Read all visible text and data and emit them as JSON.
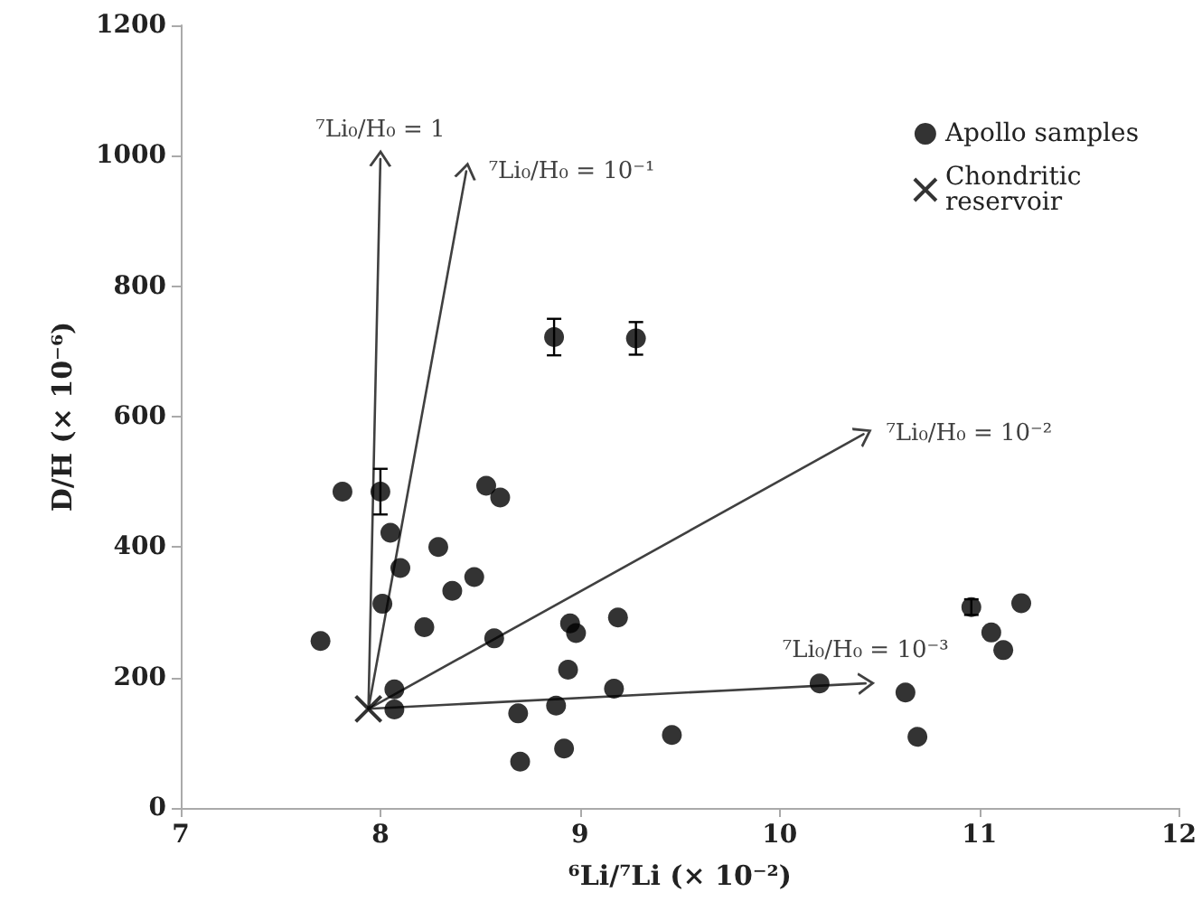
{
  "chart_data": {
    "type": "scatter",
    "xlabel": "⁶Li/⁷Li (× 10⁻²)",
    "ylabel": "D/H (× 10⁻⁶)",
    "xlim": [
      7,
      12
    ],
    "xticks": [
      7,
      8,
      9,
      10,
      11,
      12
    ],
    "ylim": [
      0,
      1200
    ],
    "yticks": [
      0,
      200,
      400,
      600,
      800,
      1000,
      1200
    ],
    "grid": false,
    "legend": "top right",
    "series": [
      {
        "name": "Apollo samples",
        "marker": "circle",
        "color": "#000000",
        "x": [
          7.7,
          7.81,
          8.0,
          8.05,
          8.01,
          8.1,
          8.07,
          8.07,
          8.22,
          8.29,
          8.36,
          8.47,
          8.53,
          8.6,
          8.57,
          8.69,
          8.7,
          8.88,
          8.92,
          8.94,
          8.95,
          8.98,
          9.17,
          9.19,
          9.46,
          10.2,
          10.63,
          10.69,
          10.96,
          11.06,
          11.12,
          11.21,
          8.87,
          9.28
        ],
        "values": [
          256,
          485,
          485,
          422,
          313,
          368,
          182,
          151,
          277,
          400,
          333,
          354,
          494,
          476,
          260,
          145,
          71,
          157,
          91,
          212,
          283,
          268,
          183,
          292,
          112,
          191,
          177,
          109,
          308,
          269,
          242,
          314,
          722,
          720
        ],
        "errors": [
          null,
          null,
          35,
          null,
          null,
          null,
          null,
          null,
          null,
          null,
          null,
          null,
          null,
          null,
          null,
          null,
          null,
          null,
          null,
          null,
          null,
          null,
          null,
          null,
          null,
          null,
          null,
          null,
          12,
          null,
          null,
          null,
          28,
          25
        ]
      },
      {
        "name": "Chondritic reservoir",
        "marker": "cross",
        "color": "#000000",
        "x": [
          7.94
        ],
        "values": [
          152
        ]
      },
      {
        "name": "⁷Li₀/H₀ = 1",
        "type": "line",
        "color": "#404040",
        "x": [
          7.94,
          8.0
        ],
        "values": [
          152,
          995
        ]
      },
      {
        "name": "⁷Li₀/H₀ = 10⁻¹",
        "type": "line",
        "color": "#404040",
        "x": [
          7.94,
          8.43
        ],
        "values": [
          152,
          976
        ]
      },
      {
        "name": "⁷Li₀/H₀ = 10⁻²",
        "type": "line",
        "color": "#404040",
        "x": [
          7.94,
          10.42
        ],
        "values": [
          152,
          573
        ]
      },
      {
        "name": "⁷Li₀/H₀ = 10⁻³",
        "type": "line",
        "color": "#404040",
        "x": [
          7.94,
          10.43
        ],
        "values": [
          152,
          191
        ]
      }
    ]
  }
}
